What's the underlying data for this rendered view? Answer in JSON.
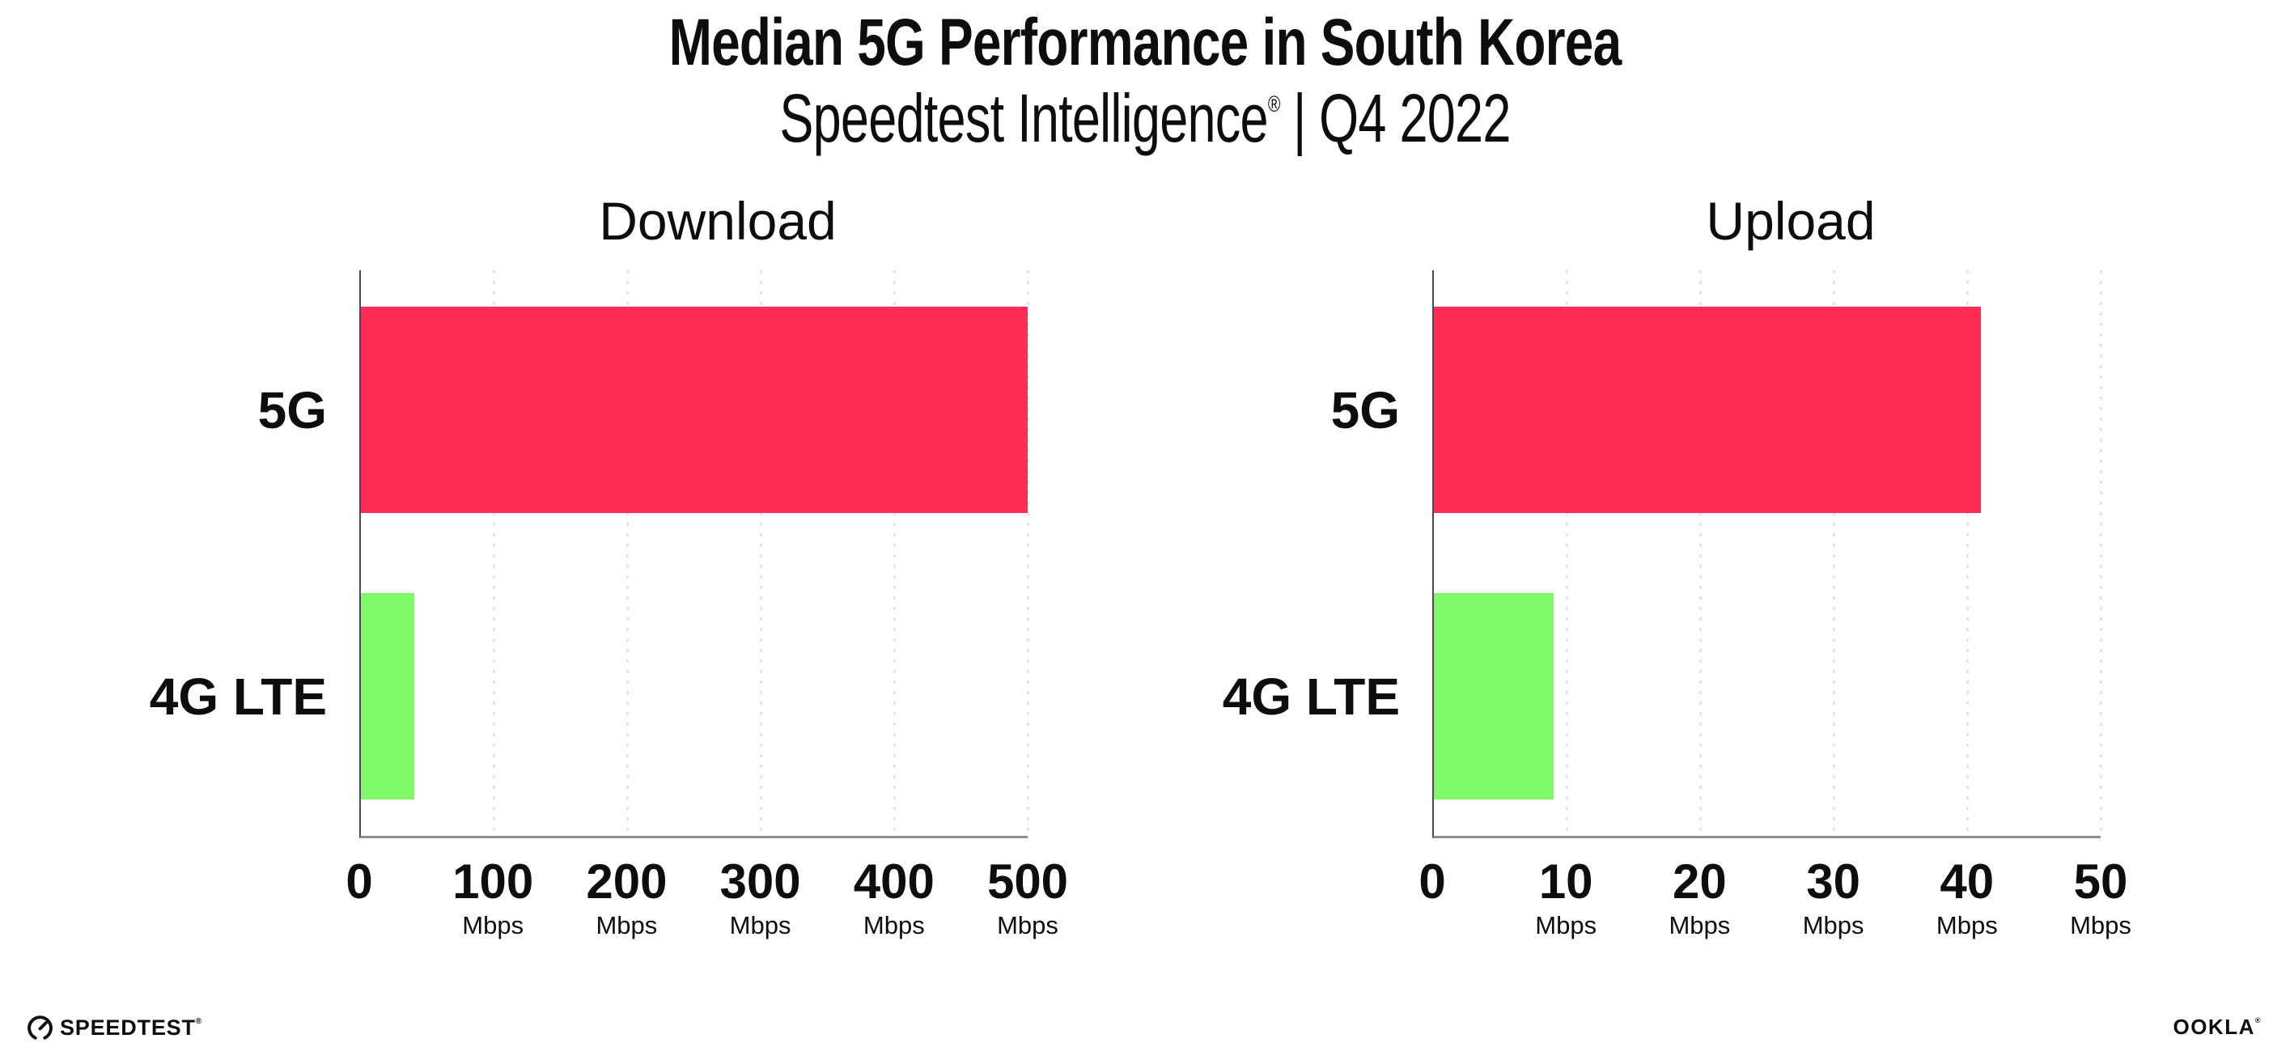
{
  "header": {
    "title": "Median 5G Performance in South Korea",
    "subtitle": {
      "brand": "Speedtest Intelligence",
      "registered": "®",
      "separator": "|",
      "period": "Q4 2022"
    }
  },
  "chart_data": [
    {
      "type": "bar",
      "orientation": "horizontal",
      "title": "Download",
      "categories": [
        "5G",
        "4G LTE"
      ],
      "values": [
        500,
        40
      ],
      "unit": "Mbps",
      "xlim": [
        0,
        500
      ],
      "xticks": [
        0,
        100,
        200,
        300,
        400,
        500
      ],
      "series_colors": {
        "5G": "#FD2D55",
        "4G LTE": "#80FA68"
      },
      "grid": "vertical-dotted",
      "legend": "none"
    },
    {
      "type": "bar",
      "orientation": "horizontal",
      "title": "Upload",
      "categories": [
        "5G",
        "4G LTE"
      ],
      "values": [
        41,
        9
      ],
      "unit": "Mbps",
      "xlim": [
        0,
        50
      ],
      "xticks": [
        0,
        10,
        20,
        30,
        40,
        50
      ],
      "series_colors": {
        "5G": "#FD2D55",
        "4G LTE": "#80FA68"
      },
      "grid": "vertical-dotted",
      "legend": "none"
    }
  ],
  "footer": {
    "speedtest_wordmark": "SPEEDTEST",
    "speedtest_registered": "®",
    "speedtest_icon": "speedometer-gauge-icon",
    "ookla_wordmark": "OOKLA",
    "ookla_registered": "®"
  },
  "colors": {
    "bar_5g": "#FD2D55",
    "bar_4g_lte": "#80FA68",
    "gridline": "#E4E4EA",
    "axis_line": "#8F8F8F",
    "axis_spine": "#4A4A52",
    "text": "#0D0D0D"
  }
}
